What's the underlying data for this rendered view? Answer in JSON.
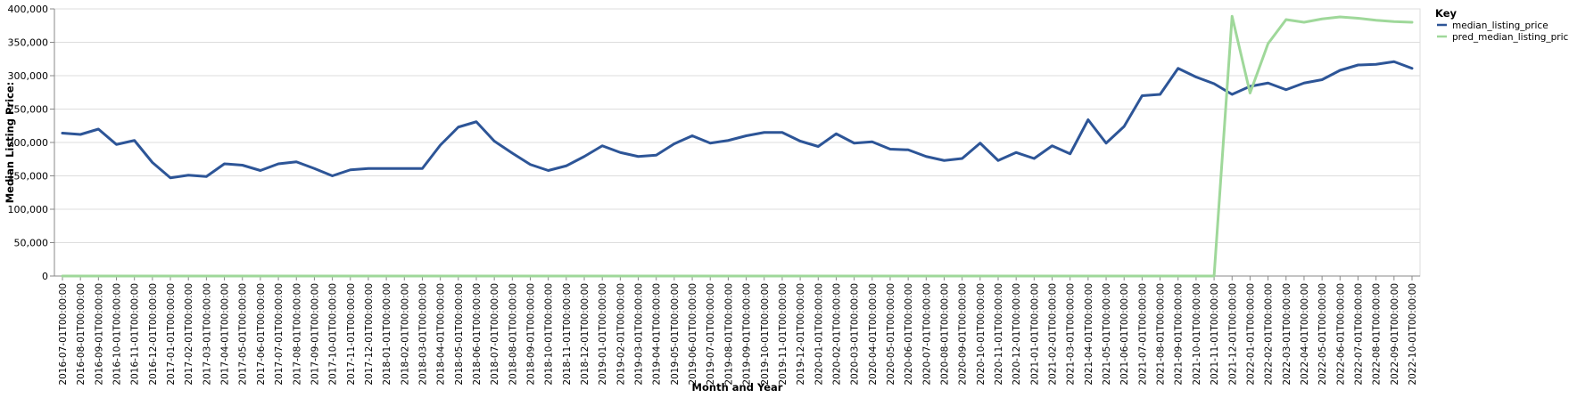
{
  "chart_data": {
    "type": "line",
    "xlabel": "Month and Year",
    "ylabel": "Median Listing Price:",
    "ylim": [
      0,
      400000
    ],
    "yticks": [
      0,
      50000,
      100000,
      150000,
      200000,
      250000,
      300000,
      350000,
      400000
    ],
    "ytick_labels": [
      "0",
      "50,000",
      "100,000",
      "150,000",
      "200,000",
      "250,000",
      "300,000",
      "350,000",
      "400,000"
    ],
    "grid": true,
    "legend": {
      "title": "Key",
      "position": "top-right"
    },
    "x": [
      "2016-07-01T00:00:00",
      "2016-08-01T00:00:00",
      "2016-09-01T00:00:00",
      "2016-10-01T00:00:00",
      "2016-11-01T00:00:00",
      "2016-12-01T00:00:00",
      "2017-01-01T00:00:00",
      "2017-02-01T00:00:00",
      "2017-03-01T00:00:00",
      "2017-04-01T00:00:00",
      "2017-05-01T00:00:00",
      "2017-06-01T00:00:00",
      "2017-07-01T00:00:00",
      "2017-08-01T00:00:00",
      "2017-09-01T00:00:00",
      "2017-10-01T00:00:00",
      "2017-11-01T00:00:00",
      "2017-12-01T00:00:00",
      "2018-01-01T00:00:00",
      "2018-02-01T00:00:00",
      "2018-03-01T00:00:00",
      "2018-04-01T00:00:00",
      "2018-05-01T00:00:00",
      "2018-06-01T00:00:00",
      "2018-07-01T00:00:00",
      "2018-08-01T00:00:00",
      "2018-09-01T00:00:00",
      "2018-10-01T00:00:00",
      "2018-11-01T00:00:00",
      "2018-12-01T00:00:00",
      "2019-01-01T00:00:00",
      "2019-02-01T00:00:00",
      "2019-03-01T00:00:00",
      "2019-04-01T00:00:00",
      "2019-05-01T00:00:00",
      "2019-06-01T00:00:00",
      "2019-07-01T00:00:00",
      "2019-08-01T00:00:00",
      "2019-09-01T00:00:00",
      "2019-10-01T00:00:00",
      "2019-11-01T00:00:00",
      "2019-12-01T00:00:00",
      "2020-01-01T00:00:00",
      "2020-02-01T00:00:00",
      "2020-03-01T00:00:00",
      "2020-04-01T00:00:00",
      "2020-05-01T00:00:00",
      "2020-06-01T00:00:00",
      "2020-07-01T00:00:00",
      "2020-08-01T00:00:00",
      "2020-09-01T00:00:00",
      "2020-10-01T00:00:00",
      "2020-11-01T00:00:00",
      "2020-12-01T00:00:00",
      "2021-01-01T00:00:00",
      "2021-02-01T00:00:00",
      "2021-03-01T00:00:00",
      "2021-04-01T00:00:00",
      "2021-05-01T00:00:00",
      "2021-06-01T00:00:00",
      "2021-07-01T00:00:00",
      "2021-08-01T00:00:00",
      "2021-09-01T00:00:00",
      "2021-10-01T00:00:00",
      "2021-11-01T00:00:00",
      "2021-12-01T00:00:00",
      "2022-01-01T00:00:00",
      "2022-02-01T00:00:00",
      "2022-03-01T00:00:00",
      "2022-04-01T00:00:00",
      "2022-05-01T00:00:00",
      "2022-06-01T00:00:00",
      "2022-07-01T00:00:00",
      "2022-08-01T00:00:00",
      "2022-09-01T00:00:00",
      "2022-10-01T00:00:00"
    ],
    "series": [
      {
        "name": "median_listing_price",
        "color": "#2d5597",
        "values": [
          214000,
          212000,
          220000,
          197000,
          203000,
          170000,
          147000,
          151000,
          149000,
          168000,
          166000,
          158000,
          168000,
          171000,
          161000,
          150000,
          159000,
          161000,
          161000,
          161000,
          161000,
          196000,
          223000,
          231000,
          202000,
          184000,
          167000,
          158000,
          165000,
          179000,
          195000,
          185000,
          179000,
          181000,
          198000,
          210000,
          199000,
          203000,
          210000,
          215000,
          215000,
          202000,
          194000,
          213000,
          199000,
          201000,
          190000,
          189000,
          179000,
          173000,
          176000,
          199000,
          173000,
          185000,
          176000,
          195000,
          183000,
          234000,
          199000,
          224000,
          270000,
          272000,
          311000,
          298000,
          288000,
          272000,
          284000,
          289000,
          279000,
          289000,
          294000,
          308000,
          316000,
          317000,
          321000,
          311000
        ]
      },
      {
        "name": "pred_median_listing_price",
        "color": "#9fd89a",
        "values": [
          0,
          0,
          0,
          0,
          0,
          0,
          0,
          0,
          0,
          0,
          0,
          0,
          0,
          0,
          0,
          0,
          0,
          0,
          0,
          0,
          0,
          0,
          0,
          0,
          0,
          0,
          0,
          0,
          0,
          0,
          0,
          0,
          0,
          0,
          0,
          0,
          0,
          0,
          0,
          0,
          0,
          0,
          0,
          0,
          0,
          0,
          0,
          0,
          0,
          0,
          0,
          0,
          0,
          0,
          0,
          0,
          0,
          0,
          0,
          0,
          0,
          0,
          0,
          0,
          0,
          389000,
          274000,
          348000,
          384000,
          380000,
          385000,
          388000,
          386000,
          383000,
          381000,
          380000
        ]
      }
    ]
  }
}
